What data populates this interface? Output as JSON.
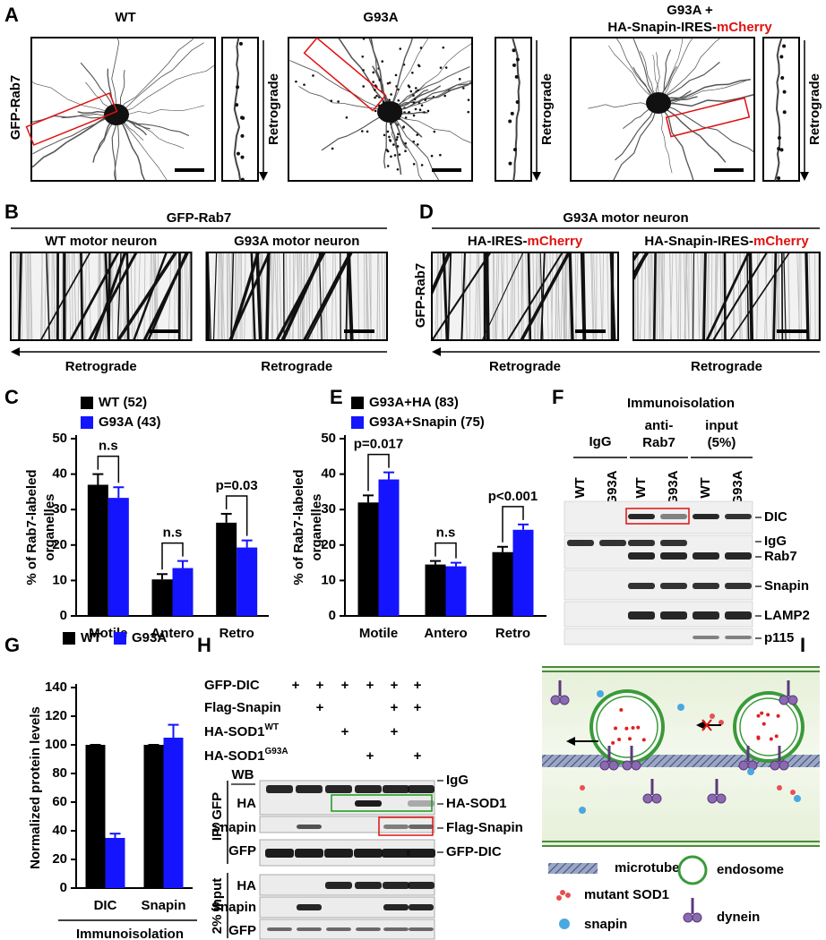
{
  "panel_letters": [
    "A",
    "B",
    "C",
    "D",
    "E",
    "F",
    "G",
    "H",
    "I"
  ],
  "panel_a": {
    "row_label": "GFP-Rab7",
    "titles": [
      "WT",
      "G93A"
    ],
    "title3_line1": "G93A +",
    "title3_line2a": "HA-Snapin-IRES-",
    "title3_line2b": "mCherry",
    "strip_label": "Retrograde"
  },
  "panel_b": {
    "header": "GFP-Rab7",
    "cols": [
      "WT  motor neuron",
      "G93A motor neuron"
    ],
    "arrow_label": "Retrograde"
  },
  "panel_d": {
    "header": "G93A motor neuron",
    "row_label": "GFP-Rab7",
    "col1a": "HA-IRES-",
    "col1b": "mCherry",
    "col2a": "HA-Snapin-IRES-",
    "col2b": "mCherry",
    "arrow_label": "Retrograde"
  },
  "panel_f": {
    "title": "Immunoisolation",
    "groups": [
      [
        "IgG"
      ],
      [
        "anti-",
        "Rab7"
      ],
      [
        "input",
        "(5%)"
      ]
    ],
    "lanes": [
      "WT",
      "G93A",
      "WT",
      "G93A",
      "WT",
      "G93A"
    ],
    "bands": [
      "DIC",
      "IgG",
      "Rab7",
      "Snapin",
      "LAMP2",
      "p115"
    ]
  },
  "panel_h": {
    "conditions": [
      {
        "label": "GFP-DIC",
        "marks": [
          "+",
          "+",
          "+",
          "+",
          "+",
          "+"
        ]
      },
      {
        "label": "Flag-Snapin",
        "marks": [
          null,
          "+",
          null,
          null,
          "+",
          "+"
        ]
      },
      {
        "label": "HA-SOD1",
        "sup": "WT",
        "marks": [
          null,
          null,
          "+",
          null,
          "+",
          null
        ]
      },
      {
        "label": "HA-SOD1",
        "sup": "G93A",
        "marks": [
          null,
          null,
          null,
          "+",
          null,
          "+"
        ]
      }
    ],
    "wb": "WB",
    "ip_label": "IP: GFP",
    "input_label": "2% input",
    "ip_rows": [
      "HA",
      "Snapin",
      "GFP"
    ],
    "input_rows": [
      "HA",
      "Snapin",
      "GFP"
    ],
    "right_labels": [
      "IgG",
      "HA-SOD1",
      "Flag-Snapin",
      "GFP-DIC"
    ]
  },
  "panel_i": {
    "legend": [
      "microtube",
      "mutant SOD1",
      "snapin",
      "endosome",
      "dynein"
    ]
  },
  "chart_data": [
    {
      "type": "bar",
      "ylabel": [
        "% of Rab7-labeled",
        "organelles"
      ],
      "categories": [
        "Motile",
        "Antero",
        "Retro"
      ],
      "series": [
        {
          "name": "WT (52)",
          "color": "#000000",
          "values": [
            37,
            10.3,
            26.3
          ],
          "errors": [
            3,
            1.5,
            2.5
          ]
        },
        {
          "name": "G93A (43)",
          "color": "#1414ff",
          "values": [
            33.3,
            13.5,
            19.3
          ],
          "errors": [
            3,
            2,
            2
          ]
        }
      ],
      "annotations": [
        "n.s",
        "n.s",
        "p=0.03"
      ],
      "ylim": [
        0,
        50
      ],
      "yticks": [
        0,
        10,
        20,
        30,
        40,
        50
      ]
    },
    {
      "type": "bar",
      "ylabel": [
        "% of Rab7-labeled",
        "organelles"
      ],
      "categories": [
        "Motile",
        "Antero",
        "Retro"
      ],
      "series": [
        {
          "name": "G93A+HA (83)",
          "color": "#000000",
          "values": [
            32,
            14.5,
            18
          ],
          "errors": [
            2,
            1,
            1.5
          ]
        },
        {
          "name": "G93A+Snapin (75)",
          "color": "#1414ff",
          "values": [
            38.5,
            14,
            24.3
          ],
          "errors": [
            2,
            1,
            1.5
          ]
        }
      ],
      "annotations": [
        "p=0.017",
        "n.s",
        "p<0.001"
      ],
      "ylim": [
        0,
        50
      ],
      "yticks": [
        0,
        10,
        20,
        30,
        40,
        50
      ]
    },
    {
      "type": "bar",
      "ylabel": [
        "Normalized protein levels"
      ],
      "categories": [
        "DIC",
        "Snapin"
      ],
      "xlabel": "Immunoisolation",
      "series": [
        {
          "name": "WT",
          "color": "#000000",
          "values": [
            100,
            100
          ],
          "errors": [
            0,
            0
          ]
        },
        {
          "name": "G93A",
          "color": "#1414ff",
          "values": [
            35,
            105
          ],
          "errors": [
            3,
            9
          ]
        }
      ],
      "ylim": [
        0,
        140
      ],
      "yticks": [
        0,
        20,
        40,
        60,
        80,
        100,
        120,
        140
      ]
    }
  ]
}
